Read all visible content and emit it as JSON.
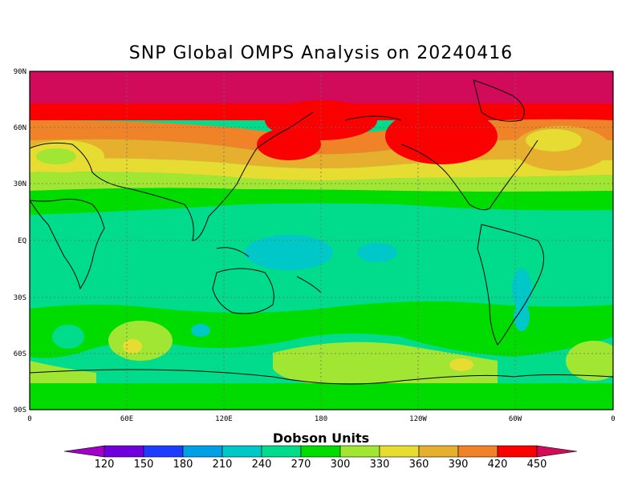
{
  "title": "SNP Global OMPS Analysis on 20240416",
  "map": {
    "lat_labels": [
      "90N",
      "60N",
      "30N",
      "EQ",
      "30S",
      "60S",
      "90S"
    ],
    "lon_labels": [
      "0",
      "60E",
      "120E",
      "180",
      "120W",
      "60W",
      "0"
    ],
    "grid": true
  },
  "colorbar": {
    "title": "Dobson Units",
    "levels": [
      "120",
      "150",
      "180",
      "210",
      "240",
      "270",
      "300",
      "330",
      "360",
      "390",
      "420",
      "450"
    ],
    "colors": [
      "#a000c8",
      "#6e00dc",
      "#1e3cff",
      "#00a0e6",
      "#00c8c8",
      "#00dc8c",
      "#00dc00",
      "#a0e632",
      "#e6dc32",
      "#e6af2d",
      "#f08228",
      "#fa0000",
      "#d20a5a"
    ]
  }
}
